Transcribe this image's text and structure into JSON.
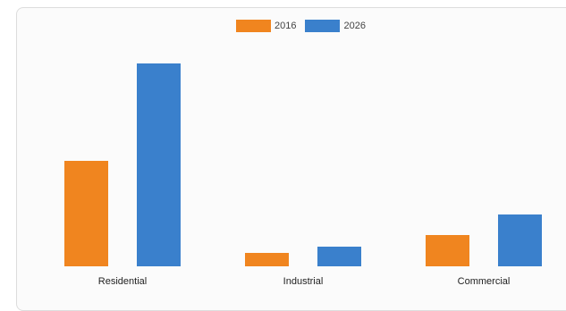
{
  "chart_data": {
    "type": "bar",
    "categories": [
      "Residential",
      "Industrial",
      "Commercial"
    ],
    "series": [
      {
        "name": "2016",
        "values": [
          118,
          15,
          35
        ],
        "color": "#f0851f"
      },
      {
        "name": "2026",
        "values": [
          227,
          22,
          58
        ],
        "color": "#3a80cc"
      }
    ],
    "title": "",
    "xlabel": "",
    "ylabel": "",
    "ylim": [
      0,
      240
    ],
    "grid": false,
    "legend_position": "top-center"
  }
}
